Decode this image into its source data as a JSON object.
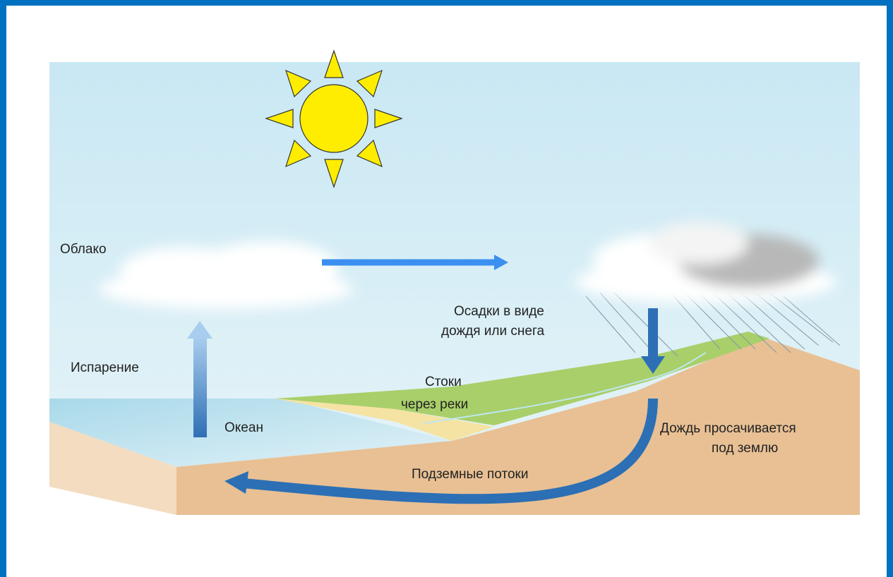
{
  "labels": {
    "cloud": "Облако",
    "evaporation": "Испарение",
    "ocean": "Океан",
    "runoff": [
      "Стоки",
      "через реки"
    ],
    "precipitation": [
      "Осадки в виде",
      "дождя или снега"
    ],
    "infiltration": [
      "Дождь просачивается",
      "под землю"
    ],
    "groundwater": "Подземные потоки"
  }
}
